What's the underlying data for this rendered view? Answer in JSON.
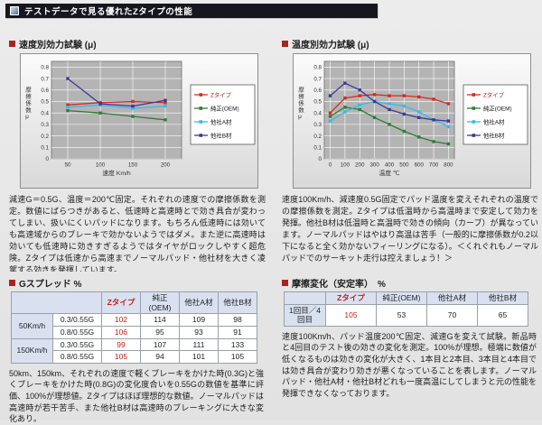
{
  "header": {
    "title": "テストデータで見る優れたZタイプの性能",
    "icon": "image-icon"
  },
  "colors": {
    "accent_red": "#c22018",
    "header_bg": "#16161e",
    "table_header_bg": "#d9e1f1",
    "plot_bg": "#b4b4b4",
    "series_z": "#d7291f",
    "series_oem": "#2f7d32",
    "series_a": "#3bb8e8",
    "series_b": "#3a3a99"
  },
  "sections": {
    "speed": {
      "title": "速度別効力試験 (μ)",
      "description": "減速G＝0.5G、温度＝200℃固定。それぞれの速度での摩擦係数を測定。数値にばらつきがあると、低速時と高速時とで効き具合が変わってしまい、扱いにくいパッドになります。もちろん低速時には効いても高速域からのブレーキで効かないようではダメ。また逆に高速時は効いても低速時に効きすぎるようではタイヤがロックしやすく超危険。Zタイプは低速から高速までノーマルパッド・他社材を大きく凌駕する効きを発揮しています。"
    },
    "temperature": {
      "title": "温度別効力試験 (μ)",
      "description": "速度100Km/h、減速度0.5G固定でパッド温度を変えそれぞれの温度での摩擦係数を測定。Zタイプは低温時から高温時まで安定して効力を発揮。他社B材は低温時と高温時で効きの傾向（カーブ）が異なっています。ノーマルパッドはやはり高温は苦手（一般的に摩擦係数が0.2以下になると全く効かないフィーリングになる）。＜くれぐれもノーマルパッドでのサーキット走行は控えましょう！＞"
    },
    "gspread": {
      "title": "Gスプレッド %",
      "description": "50km、150km、それぞれの速度で軽くブレーキをかけた時(0.3G)と強くブレーキをかけた時(0.8G)の変化度合いを0.55Gの数値を基準に評価、100%が理想値。Zタイプはほぼ理想的な数値。ノーマルパッドは高速時が若干苦手、また他社B材は高速時のブレーキングに大きな変化あり。"
    },
    "stability": {
      "title": "摩擦変化（安定率）　%",
      "description": "速度100Km/h、パッド温度200℃固定、減速Gを変えて試験。新品時と4回目のテスト後の効きの変化を測定。100%が理想。極端に数値が低くなるものは効きの変化が大きく、1本目と2本目、3本目と4本目では効き具合が変わり効きが悪くなっていることを表します。ノーマルパッド・他社A材・他社B材どれも一度高温にしてしまうと元の性能を発揮できなくなっております。"
    }
  },
  "chart_data": [
    {
      "type": "line",
      "title": "速度別効力試験 (μ)",
      "xlabel": "速度 Km/h",
      "ylabel": "摩擦係数μ",
      "x": [
        50,
        100,
        150,
        200
      ],
      "xticks": [
        50,
        100,
        150,
        200
      ],
      "xlim": [
        25,
        225
      ],
      "ylim": [
        0,
        0.85
      ],
      "yticks": [
        0,
        0.1,
        0.2,
        0.3,
        0.4,
        0.5,
        0.6,
        0.7,
        0.8
      ],
      "grid": true,
      "legend_position": "right",
      "series": [
        {
          "name": "Zタイプ",
          "color": "#d7291f",
          "values": [
            0.47,
            0.49,
            0.5,
            0.49
          ]
        },
        {
          "name": "純正(OEM)",
          "color": "#2f7d32",
          "values": [
            0.42,
            0.4,
            0.37,
            0.34
          ]
        },
        {
          "name": "他社A材",
          "color": "#3bb8e8",
          "values": [
            0.45,
            0.47,
            0.44,
            0.46
          ]
        },
        {
          "name": "他社B材",
          "color": "#3a3a99",
          "values": [
            0.7,
            0.48,
            0.46,
            0.51
          ]
        }
      ]
    },
    {
      "type": "line",
      "title": "温度別効力試験 (μ)",
      "xlabel": "温度 ℃",
      "ylabel": "摩擦係数μ",
      "x": [
        0,
        100,
        200,
        300,
        400,
        500,
        600,
        700,
        800
      ],
      "xticks": [
        0,
        100,
        200,
        300,
        400,
        500,
        600,
        700,
        800
      ],
      "xlim": [
        -40,
        840
      ],
      "ylim": [
        0,
        0.85
      ],
      "yticks": [
        0,
        0.1,
        0.2,
        0.3,
        0.4,
        0.5,
        0.6,
        0.7,
        0.8
      ],
      "grid": true,
      "legend_position": "right",
      "series": [
        {
          "name": "Zタイプ",
          "color": "#d7291f",
          "values": [
            0.4,
            0.53,
            0.55,
            0.56,
            0.55,
            0.55,
            0.54,
            0.52,
            0.48
          ]
        },
        {
          "name": "純正(OEM)",
          "color": "#2f7d32",
          "values": [
            0.37,
            0.45,
            0.43,
            0.36,
            0.3,
            0.24,
            0.19,
            0.15,
            0.13
          ]
        },
        {
          "name": "他社A材",
          "color": "#3bb8e8",
          "values": [
            0.33,
            0.41,
            0.47,
            0.5,
            0.48,
            0.46,
            0.41,
            0.34,
            0.28
          ]
        },
        {
          "name": "他社B材",
          "color": "#3a3a99",
          "values": [
            0.55,
            0.66,
            0.6,
            0.5,
            0.43,
            0.39,
            0.36,
            0.34,
            0.33
          ]
        }
      ]
    },
    {
      "type": "table",
      "title": "Gスプレッド %",
      "columns": [
        "",
        "",
        "Zタイプ",
        "純正(OEM)",
        "他社A材",
        "他社B材"
      ],
      "rows": [
        [
          "50Km/h",
          "0.3/0.55G",
          102,
          114,
          109,
          98
        ],
        [
          "50Km/h",
          "0.8/0.55G",
          106,
          95,
          93,
          91
        ],
        [
          "150Km/h",
          "0.3/0.55G",
          99,
          107,
          111,
          133
        ],
        [
          "150Km/h",
          "0.8/0.55G",
          105,
          94,
          101,
          105
        ]
      ]
    },
    {
      "type": "table",
      "title": "摩擦変化（安定率）　%",
      "columns": [
        "",
        "Zタイプ",
        "純正(OEM)",
        "他社A材",
        "他社B材"
      ],
      "rows": [
        [
          "1回目／4回目",
          105,
          53,
          70,
          65
        ]
      ]
    }
  ]
}
